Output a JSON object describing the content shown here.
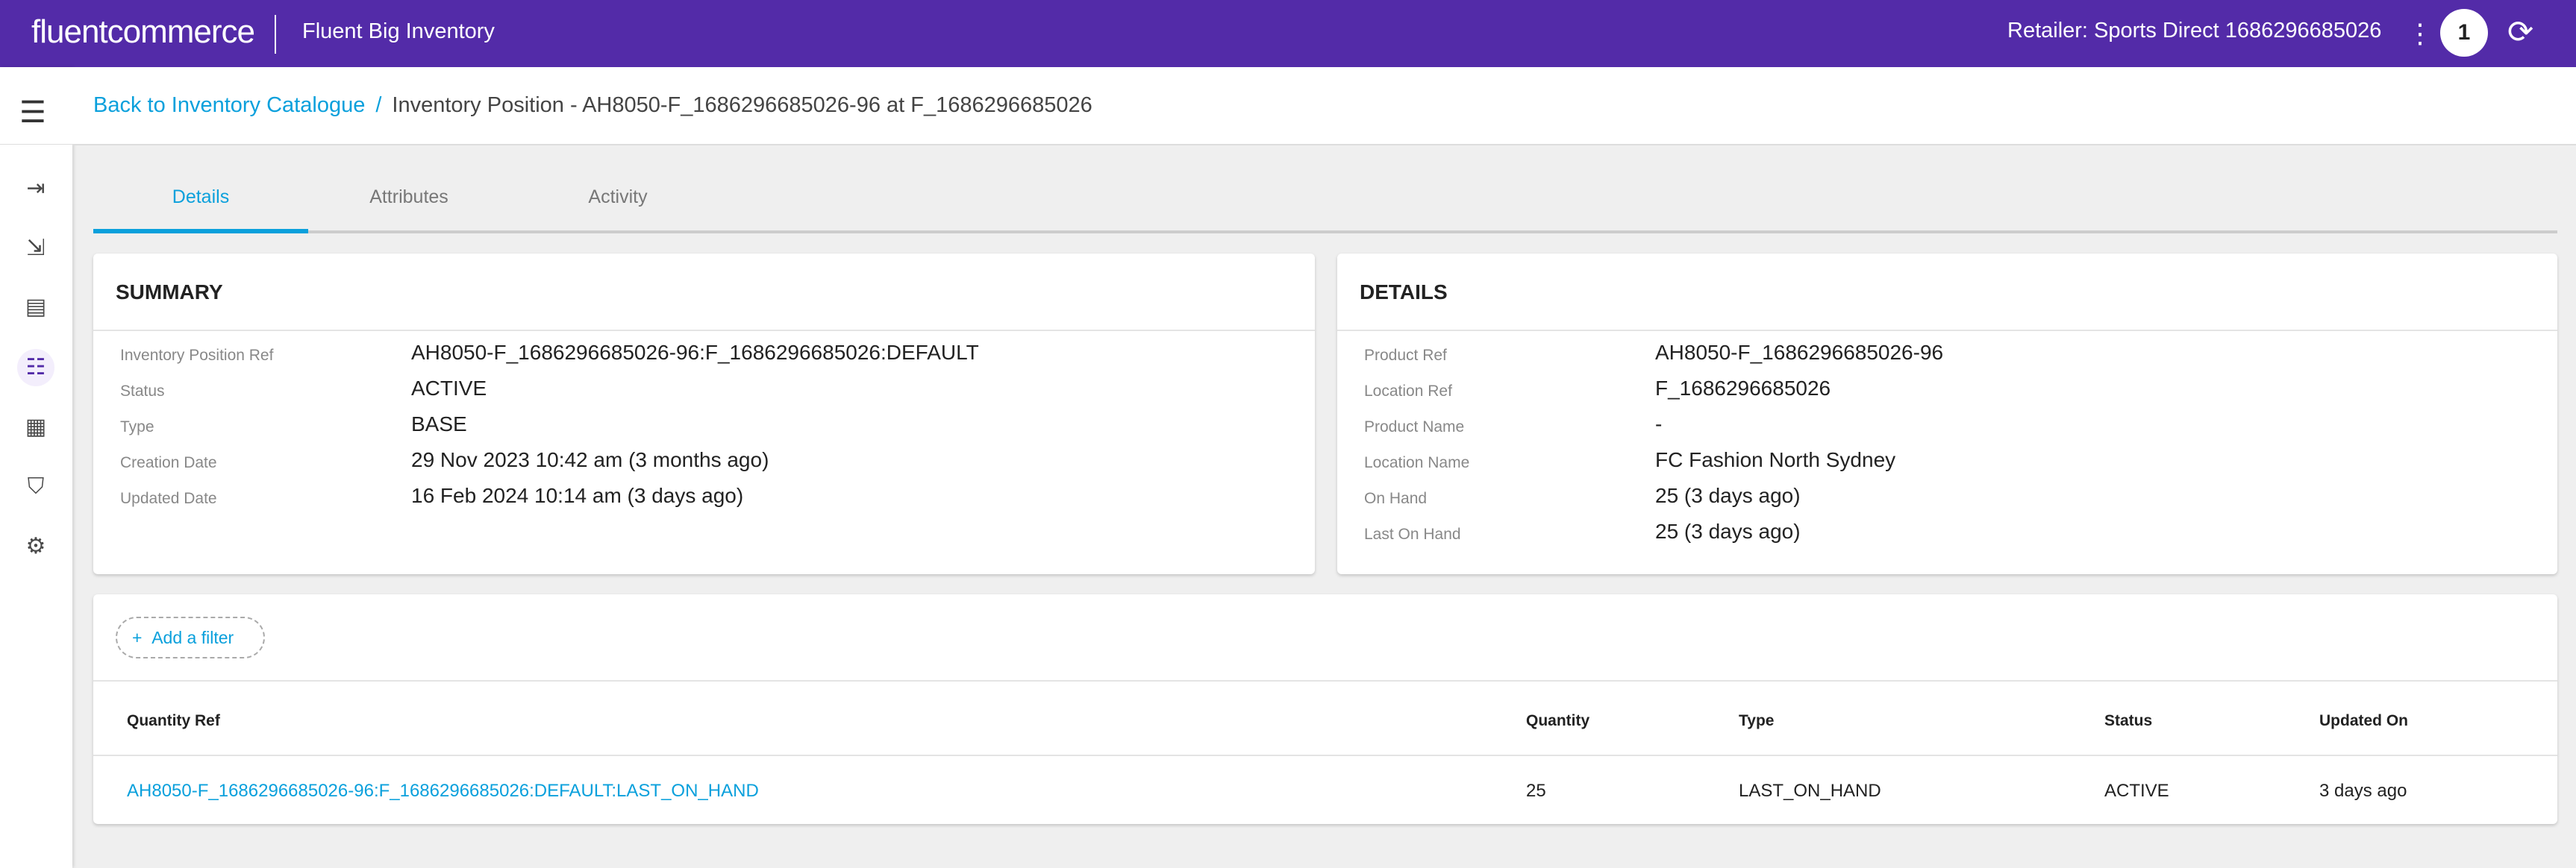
{
  "header": {
    "logo": "fluentcommerce",
    "app_name": "Fluent Big Inventory",
    "retailer": "Retailer: Sports Direct 1686296685026",
    "notification_count": "1"
  },
  "sidebar": {
    "items": [
      {
        "icon": "login-icon"
      },
      {
        "icon": "logout-icon"
      },
      {
        "icon": "dashboard-icon"
      },
      {
        "icon": "list-icon",
        "active": true
      },
      {
        "icon": "building-icon"
      },
      {
        "icon": "spotlight-icon"
      },
      {
        "icon": "gear-icon"
      }
    ]
  },
  "breadcrumb": {
    "back": "Back to Inventory Catalogue",
    "separator": "/",
    "current": "Inventory Position - AH8050-F_1686296685026-96 at F_1686296685026"
  },
  "tabs": [
    {
      "label": "Details",
      "active": true
    },
    {
      "label": "Attributes"
    },
    {
      "label": "Activity"
    }
  ],
  "summary": {
    "title": "SUMMARY",
    "rows": [
      {
        "label": "Inventory Position Ref",
        "value": "AH8050-F_1686296685026-96:F_1686296685026:DEFAULT"
      },
      {
        "label": "Status",
        "value": "ACTIVE"
      },
      {
        "label": "Type",
        "value": "BASE"
      },
      {
        "label": "Creation Date",
        "value": "29 Nov 2023 10:42 am (3 months ago)"
      },
      {
        "label": "Updated Date",
        "value": "16 Feb 2024 10:14 am (3 days ago)"
      }
    ]
  },
  "details": {
    "title": "DETAILS",
    "rows": [
      {
        "label": "Product Ref",
        "value": "AH8050-F_1686296685026-96"
      },
      {
        "label": "Location Ref",
        "value": "F_1686296685026"
      },
      {
        "label": "Product Name",
        "value": "-"
      },
      {
        "label": "Location Name",
        "value": "FC Fashion North Sydney"
      },
      {
        "label": "On Hand",
        "value": "25 (3 days ago)"
      },
      {
        "label": "Last On Hand",
        "value": "25 (3 days ago)"
      }
    ]
  },
  "table": {
    "add_filter": "Add a filter",
    "columns": [
      "Quantity Ref",
      "Quantity",
      "Type",
      "Status",
      "Updated On"
    ],
    "rows": [
      [
        "AH8050-F_1686296685026-96:F_1686296685026:DEFAULT:LAST_ON_HAND",
        "25",
        "LAST_ON_HAND",
        "ACTIVE",
        "3 days ago"
      ]
    ]
  },
  "colors": {
    "brand": "#532ba8",
    "accent": "#0aa0dc"
  }
}
